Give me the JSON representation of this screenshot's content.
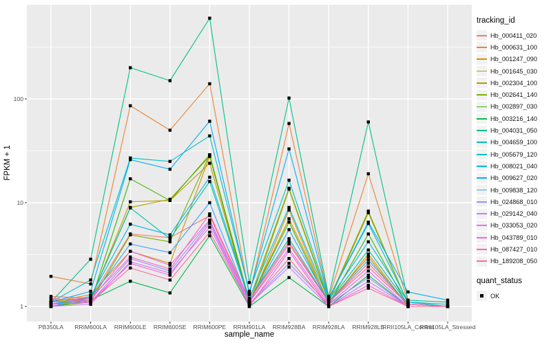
{
  "chart_data": {
    "type": "line",
    "title": "",
    "xlabel": "sample_name",
    "ylabel": "FPKM + 1",
    "x_categories": [
      "PB350LA",
      "RRIM600LA",
      "RRIM600LE",
      "RRIM600SE",
      "RRIM600PE",
      "RRIM901LA",
      "RRIM928BA",
      "RRIM928LA",
      "RRIM928LE",
      "RRII105LA_Control",
      "RRII105LA_Stressed"
    ],
    "y_scale": "log10",
    "y_ticks": [
      "1",
      "10",
      "100"
    ],
    "y_tick_values": [
      1,
      10,
      100
    ],
    "y_minor_values": [
      3.1623,
      31.623,
      316.23
    ],
    "ylim": [
      0.72,
      808
    ],
    "grid": true,
    "legend_position": "right",
    "legend_title": "tracking_id",
    "quant_legend": {
      "title": "quant_status",
      "label": "OK"
    },
    "point_color": "#000000",
    "panel_color": "#ebebeb",
    "series": [
      {
        "name": "Hb_000411_020",
        "color": "#F8766D",
        "values": [
          1.25,
          1.2,
          5.0,
          4.6,
          7.5,
          1.1,
          4.0,
          1.1,
          2.6,
          1.05,
          1.0
        ]
      },
      {
        "name": "Hb_000631_100",
        "color": "#EA8331",
        "values": [
          1.95,
          1.65,
          86,
          50,
          140,
          1.3,
          58,
          1.2,
          19,
          1.1,
          1.0
        ]
      },
      {
        "name": "Hb_001247_090",
        "color": "#D89000",
        "values": [
          1.1,
          1.3,
          3.4,
          2.6,
          28,
          1.05,
          8.5,
          1.05,
          3.2,
          1.0,
          1.0
        ]
      },
      {
        "name": "Hb_001645_030",
        "color": "#C09B00",
        "values": [
          1.05,
          1.15,
          10.2,
          10.5,
          24,
          1.1,
          7.0,
          1.1,
          3.0,
          1.0,
          1.0
        ]
      },
      {
        "name": "Hb_002304_100",
        "color": "#A3A500",
        "values": [
          1.1,
          1.2,
          9.0,
          10.8,
          28,
          1.15,
          13.8,
          1.15,
          8.3,
          1.05,
          1.0
        ]
      },
      {
        "name": "Hb_002641_140",
        "color": "#7CAE00",
        "values": [
          1.0,
          1.1,
          4.9,
          4.2,
          29,
          1.05,
          13.5,
          1.1,
          8.0,
          1.05,
          1.0
        ]
      },
      {
        "name": "Hb_002897_030",
        "color": "#39B600",
        "values": [
          1.05,
          1.1,
          17,
          10.5,
          29,
          1.1,
          6.5,
          1.05,
          5.0,
          1.0,
          1.0
        ]
      },
      {
        "name": "Hb_003216_140",
        "color": "#00BB4E",
        "values": [
          1.0,
          1.15,
          1.75,
          1.35,
          4.8,
          1.0,
          1.9,
          1.0,
          2.0,
          1.0,
          1.0
        ]
      },
      {
        "name": "Hb_004031_050",
        "color": "#00C087",
        "values": [
          1.1,
          2.85,
          200,
          150,
          600,
          1.7,
          102,
          1.25,
          60,
          1.15,
          1.1
        ]
      },
      {
        "name": "Hb_004659_100",
        "color": "#00C1AB",
        "values": [
          1.05,
          1.2,
          8.9,
          4.5,
          16,
          1.15,
          4.5,
          1.1,
          3.5,
          1.05,
          1.0
        ]
      },
      {
        "name": "Hb_005679_120",
        "color": "#00BFC4",
        "values": [
          1.1,
          1.8,
          27,
          25,
          44,
          1.4,
          16.5,
          1.2,
          6.3,
          1.1,
          1.05
        ]
      },
      {
        "name": "Hb_008021_040",
        "color": "#00BAE0",
        "values": [
          1.05,
          1.25,
          6.2,
          4.9,
          17.6,
          1.2,
          9.0,
          1.15,
          4.2,
          1.1,
          1.0
        ]
      },
      {
        "name": "Hb_009627_020",
        "color": "#00B0F6",
        "values": [
          1.1,
          1.4,
          26,
          21,
          61,
          1.35,
          33,
          1.2,
          6.5,
          1.38,
          1.15
        ]
      },
      {
        "name": "Hb_009838_120",
        "color": "#35A2FF",
        "values": [
          1.0,
          1.2,
          4.0,
          3.3,
          10,
          1.1,
          5.5,
          1.1,
          2.8,
          1.05,
          1.0
        ]
      },
      {
        "name": "Hb_024868_010",
        "color": "#9590FF",
        "values": [
          1.05,
          1.1,
          2.9,
          2.2,
          6.6,
          1.05,
          2.6,
          1.05,
          1.9,
          1.0,
          1.0
        ]
      },
      {
        "name": "Hb_029142_040",
        "color": "#C77CFF",
        "values": [
          1.0,
          1.05,
          2.7,
          2.1,
          5.8,
          1.05,
          2.4,
          1.0,
          1.75,
          1.0,
          1.0
        ]
      },
      {
        "name": "Hb_033053_020",
        "color": "#E76BF3",
        "values": [
          1.1,
          1.15,
          3.4,
          2.5,
          6.8,
          1.1,
          3.6,
          1.05,
          2.2,
          1.0,
          1.0
        ]
      },
      {
        "name": "Hb_043789_010",
        "color": "#FA62DB",
        "values": [
          1.05,
          1.1,
          2.6,
          2.0,
          6.3,
          1.0,
          3.4,
          1.0,
          1.6,
          1.0,
          1.0
        ]
      },
      {
        "name": "Hb_087427_010",
        "color": "#FF62BC",
        "values": [
          1.15,
          1.2,
          3.0,
          2.3,
          7.8,
          1.15,
          4.2,
          1.1,
          2.4,
          1.05,
          1.0
        ]
      },
      {
        "name": "Hb_189208_050",
        "color": "#FF6A98",
        "values": [
          1.2,
          1.1,
          2.35,
          1.8,
          5.2,
          1.05,
          2.9,
          1.0,
          1.5,
          1.0,
          1.0
        ]
      }
    ]
  }
}
